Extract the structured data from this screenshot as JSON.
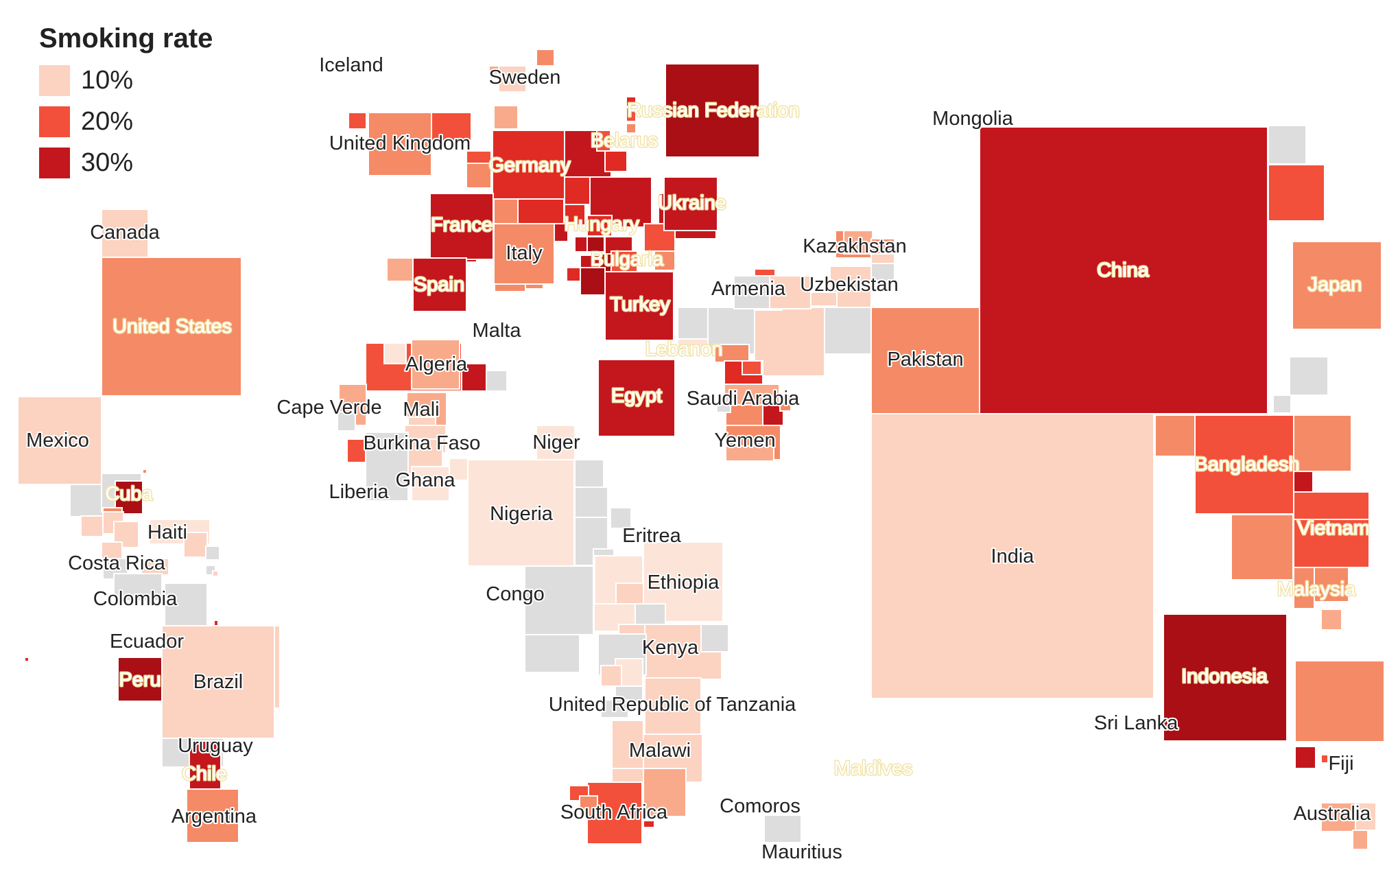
{
  "legend": {
    "title": "Smoking rate",
    "items": [
      {
        "label": "10%",
        "color": "#fcd2c0"
      },
      {
        "label": "20%",
        "color": "#f2503a"
      },
      {
        "label": "30%",
        "color": "#c3171d"
      }
    ]
  },
  "colors": {
    "level1": "#fde4d8",
    "level2": "#fcd2c0",
    "level3": "#f9aa8a",
    "level4": "#f58a67",
    "level5": "#f2503a",
    "level6": "#e02a24",
    "level7": "#c3171d",
    "level8": "#a90f15",
    "nodata": "#dddddd"
  },
  "countries": [
    "Iceland",
    "Sweden",
    "Russian Federation",
    "Mongolia",
    "United Kingdom",
    "Belarus",
    "Germany",
    "Ukraine",
    "France",
    "Hungary",
    "Kazakhstan",
    "Italy",
    "Bulgaria",
    "Spain",
    "Armenia",
    "Uzbekistan",
    "China",
    "Japan",
    "Turkey",
    "United States",
    "Canada",
    "Malta",
    "Lebanon",
    "Pakistan",
    "Algeria",
    "Egypt",
    "Saudi Arabia",
    "Mexico",
    "Cape Verde",
    "Mali",
    "Burkina Faso",
    "Niger",
    "Yemen",
    "Bangladesh",
    "Liberia",
    "Ghana",
    "Cuba",
    "Nigeria",
    "Vietnam",
    "Eritrea",
    "Haiti",
    "India",
    "Costa Rica",
    "Ethiopia",
    "Malaysia",
    "Congo",
    "Colombia",
    "Ecuador",
    "Kenya",
    "Indonesia",
    "Peru",
    "Brazil",
    "United Republic of Tanzania",
    "Sri Lanka",
    "Uruguay",
    "Malawi",
    "Maldives",
    "Fiji",
    "Chile",
    "South Africa",
    "Comoros",
    "Australia",
    "Argentina",
    "Mauritius"
  ]
}
